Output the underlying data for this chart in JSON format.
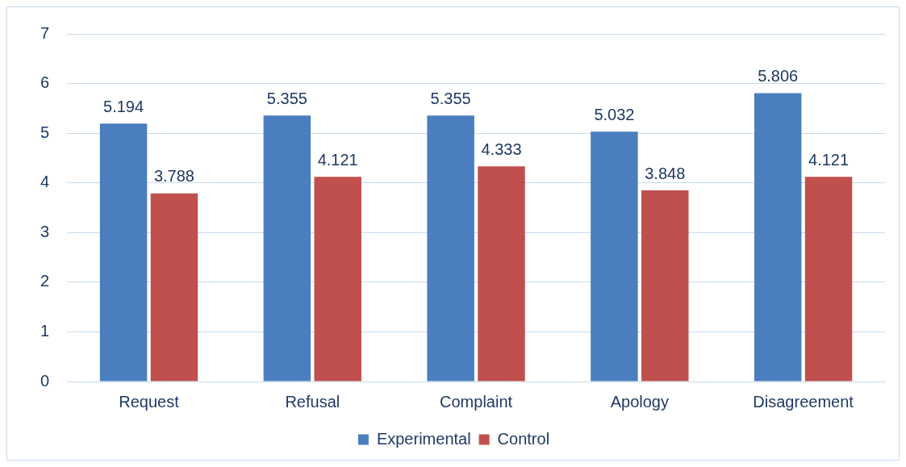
{
  "chart_data": {
    "type": "bar",
    "categories": [
      "Request",
      "Refusal",
      "Complaint",
      "Apology",
      "Disagreement"
    ],
    "series": [
      {
        "name": "Experimental",
        "color": "#4a7ebf",
        "values": [
          5.194,
          5.355,
          5.355,
          5.032,
          5.806
        ]
      },
      {
        "name": "Control",
        "color": "#c0504d",
        "values": [
          3.788,
          4.121,
          4.333,
          3.848,
          4.121
        ]
      }
    ],
    "ylim": [
      0,
      7
    ],
    "yticks": [
      0,
      1,
      2,
      3,
      4,
      5,
      6,
      7
    ],
    "grid": "y",
    "legend": "bottom",
    "data_labels": true
  }
}
